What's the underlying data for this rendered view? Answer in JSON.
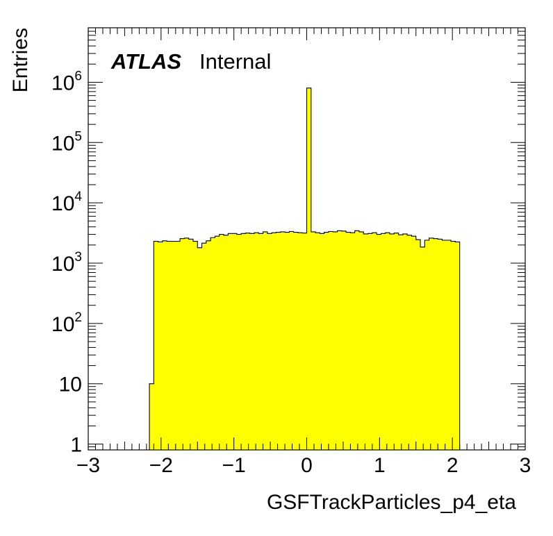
{
  "chart_data": {
    "type": "bar",
    "label_main": "ATLAS",
    "label_sub": "Internal",
    "xlabel": "GSFTrackParticles_p4_eta",
    "ylabel": "Entries",
    "xlim": [
      -3,
      3
    ],
    "ylim": [
      0.8,
      8000000
    ],
    "yscale": "log",
    "x_ticks": [
      "−3",
      "−2",
      "−1",
      "0",
      "1",
      "2",
      "3"
    ],
    "y_ticks": [
      {
        "base": "1",
        "exp": ""
      },
      {
        "base": "10",
        "exp": ""
      },
      {
        "base": "10",
        "exp": "2"
      },
      {
        "base": "10",
        "exp": "3"
      },
      {
        "base": "10",
        "exp": "4"
      },
      {
        "base": "10",
        "exp": "5"
      },
      {
        "base": "10",
        "exp": "6"
      }
    ],
    "fill_color": "#ffff00",
    "bin_width": 0.06,
    "bins_x_low": [
      -2.16,
      -2.1,
      -2.04,
      -1.98,
      -1.92,
      -1.86,
      -1.8,
      -1.74,
      -1.68,
      -1.62,
      -1.56,
      -1.5,
      -1.44,
      -1.38,
      -1.32,
      -1.26,
      -1.2,
      -1.14,
      -1.08,
      -1.02,
      -0.96,
      -0.9,
      -0.84,
      -0.78,
      -0.72,
      -0.66,
      -0.6,
      -0.54,
      -0.48,
      -0.42,
      -0.36,
      -0.3,
      -0.24,
      -0.18,
      -0.12,
      -0.06,
      0.0,
      0.06,
      0.12,
      0.18,
      0.24,
      0.3,
      0.36,
      0.42,
      0.48,
      0.54,
      0.6,
      0.66,
      0.72,
      0.78,
      0.84,
      0.9,
      0.96,
      1.02,
      1.08,
      1.14,
      1.2,
      1.26,
      1.32,
      1.38,
      1.44,
      1.5,
      1.56,
      1.62,
      1.68,
      1.74,
      1.8,
      1.86,
      1.92,
      1.98,
      2.04
    ],
    "values": [
      10,
      2300,
      2250,
      2350,
      2300,
      2300,
      2300,
      2550,
      2600,
      2500,
      2300,
      1800,
      2150,
      2350,
      2650,
      2800,
      3000,
      2900,
      3100,
      3100,
      3000,
      3100,
      3150,
      3100,
      3200,
      3100,
      3300,
      3100,
      3200,
      3250,
      3300,
      3250,
      3350,
      3250,
      3200,
      3150,
      800000,
      3300,
      3200,
      3100,
      3250,
      3350,
      3300,
      3450,
      3400,
      3250,
      3200,
      3450,
      3300,
      3050,
      3100,
      3200,
      3000,
      3100,
      3200,
      3050,
      3150,
      2950,
      3050,
      2900,
      2800,
      2450,
      1850,
      2400,
      2600,
      2550,
      2500,
      2400,
      2400,
      2300,
      2250
    ]
  }
}
